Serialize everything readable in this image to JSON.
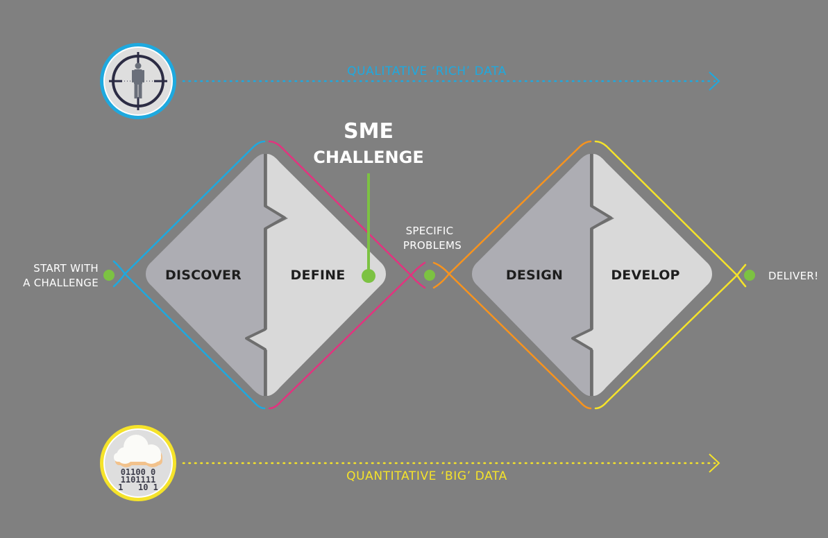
{
  "top_banner": {
    "label": "QUALITATIVE ‘RICH’ DATA",
    "icon": "target-person-icon"
  },
  "bottom_banner": {
    "label": "QUANTITATIVE ‘BIG’ DATA",
    "icon": "cloud-binary-icon",
    "binary_lines": [
      "01100 0",
      "1101111",
      "1   10 1"
    ]
  },
  "sme_challenge": {
    "line1": "SME",
    "line2": "CHALLENGE"
  },
  "start": {
    "line1": "START WITH",
    "line2": "A CHALLENGE"
  },
  "specific_problems": {
    "line1": "SPECIFIC",
    "line2": "PROBLEMS"
  },
  "deliver": {
    "label": "DELIVER!"
  },
  "phases": {
    "discover": "DISCOVER",
    "define": "DEFINE",
    "design": "DESIGN",
    "develop": "DEVELOP"
  },
  "colors": {
    "background": "#808080",
    "discover_line": "#1ea9df",
    "define_line": "#e2337f",
    "design_line": "#f7931e",
    "develop_line": "#f5e32a",
    "marker": "#7cc242",
    "panel_dark": "#adadb3",
    "panel_light": "#d9d9d9"
  }
}
